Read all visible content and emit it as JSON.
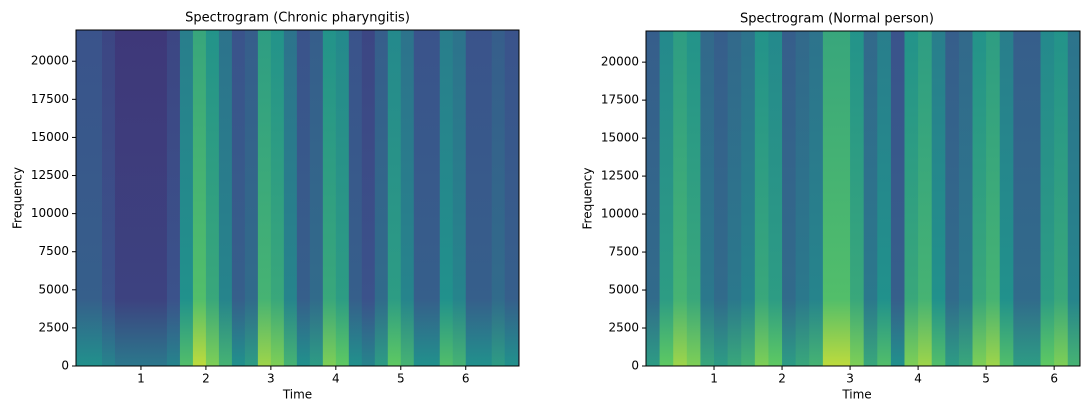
{
  "chart_data": [
    {
      "type": "spectrogram",
      "title": "Spectrogram (Chronic pharyngitis)",
      "x_label": "Time",
      "y_label": "Frequency",
      "x": [
        0.1,
        0.3,
        0.5,
        0.7,
        0.9,
        1.1,
        1.3,
        1.5,
        1.7,
        1.9,
        2.1,
        2.3,
        2.5,
        2.7,
        2.9,
        3.1,
        3.3,
        3.5,
        3.7,
        3.9,
        4.1,
        4.3,
        4.5,
        4.7,
        4.9,
        5.1,
        5.3,
        5.5,
        5.7,
        5.9,
        6.1,
        6.3,
        6.5,
        6.7
      ],
      "values": [
        0.3,
        0.3,
        0.25,
        0.2,
        0.2,
        0.2,
        0.2,
        0.25,
        0.5,
        0.7,
        0.6,
        0.45,
        0.3,
        0.35,
        0.65,
        0.6,
        0.45,
        0.3,
        0.35,
        0.6,
        0.55,
        0.3,
        0.25,
        0.35,
        0.55,
        0.45,
        0.3,
        0.3,
        0.5,
        0.45,
        0.3,
        0.3,
        0.35,
        0.3
      ],
      "xlim": [
        0,
        6.82
      ],
      "xticks": [
        1,
        2,
        3,
        4,
        5,
        6
      ],
      "ylim": [
        0,
        22050
      ],
      "yticks": [
        0,
        2500,
        5000,
        7500,
        10000,
        12500,
        15000,
        17500,
        20000
      ]
    },
    {
      "type": "spectrogram",
      "title": "Spectrogram (Normal person)",
      "x_label": "Time",
      "y_label": "Frequency",
      "x": [
        0.1,
        0.3,
        0.5,
        0.7,
        0.9,
        1.1,
        1.3,
        1.5,
        1.7,
        1.9,
        2.1,
        2.3,
        2.5,
        2.7,
        2.9,
        3.1,
        3.3,
        3.5,
        3.7,
        3.9,
        4.1,
        4.3,
        4.5,
        4.7,
        4.9,
        5.1,
        5.3,
        5.5,
        5.7,
        5.9,
        6.1,
        6.3
      ],
      "values": [
        0.35,
        0.55,
        0.65,
        0.6,
        0.4,
        0.35,
        0.4,
        0.45,
        0.6,
        0.55,
        0.35,
        0.4,
        0.45,
        0.7,
        0.7,
        0.6,
        0.4,
        0.5,
        0.3,
        0.6,
        0.65,
        0.5,
        0.35,
        0.4,
        0.6,
        0.65,
        0.5,
        0.35,
        0.35,
        0.55,
        0.6,
        0.45
      ],
      "xlim": [
        0,
        6.38
      ],
      "xticks": [
        1,
        2,
        3,
        4,
        5,
        6
      ],
      "ylim": [
        0,
        22050
      ],
      "yticks": [
        0,
        2500,
        5000,
        7500,
        10000,
        12500,
        15000,
        17500,
        20000
      ]
    }
  ]
}
